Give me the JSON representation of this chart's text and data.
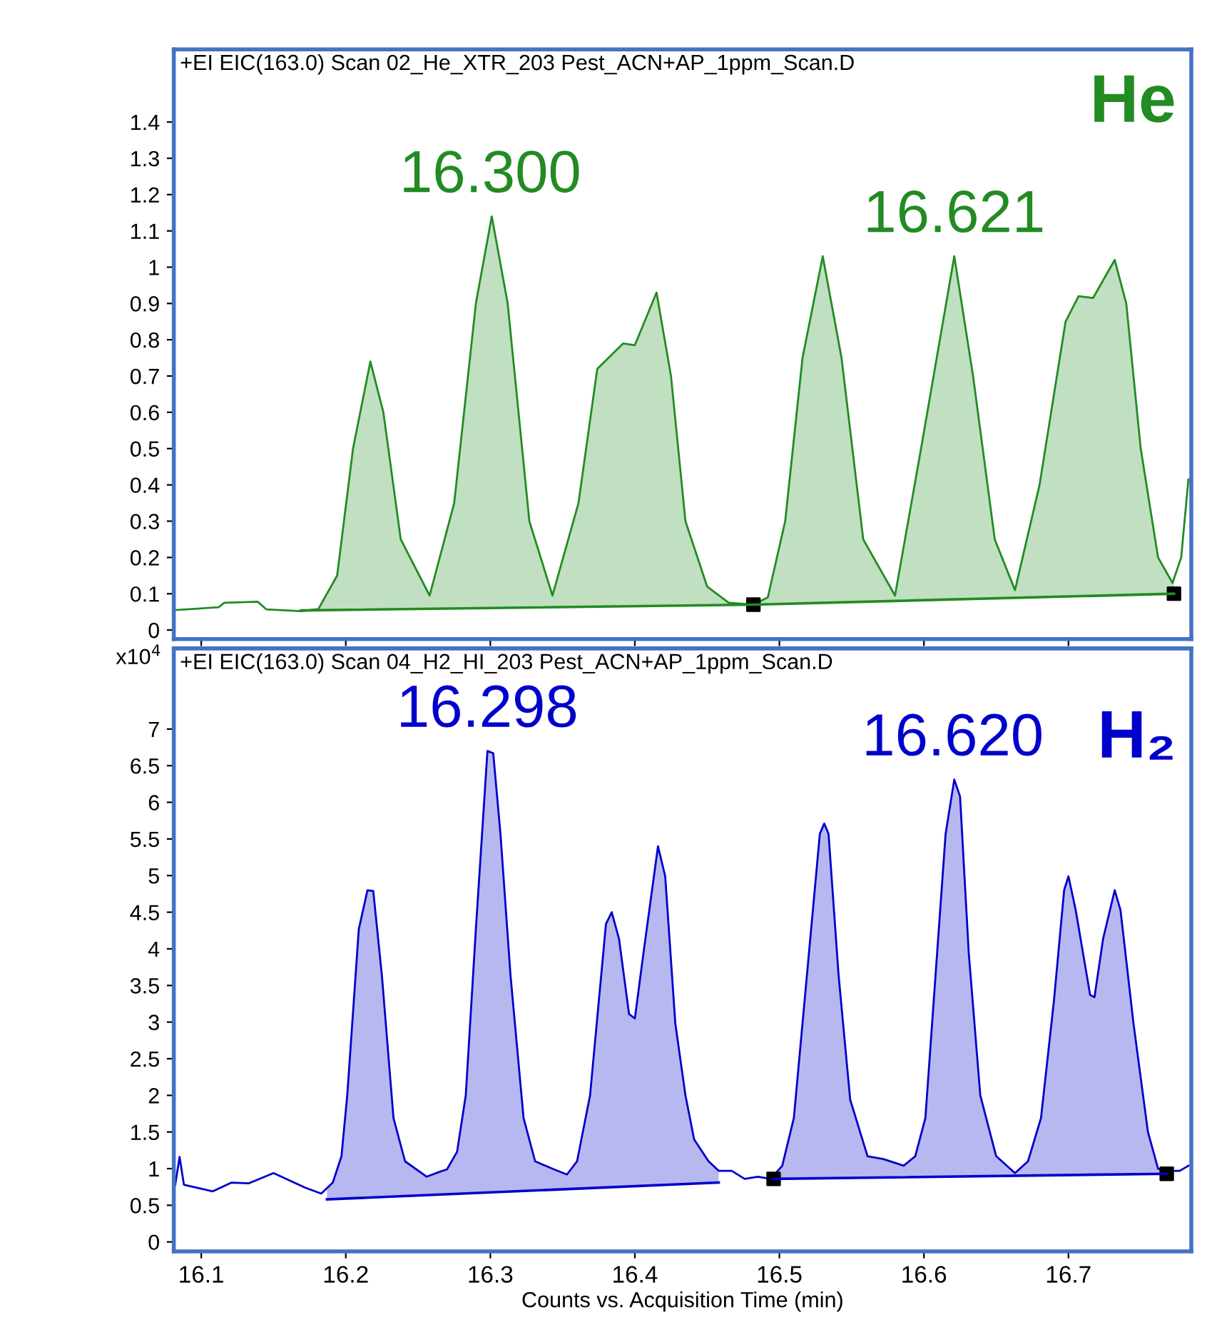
{
  "chart_data": [
    {
      "type": "line",
      "title": "+EI EIC(163.0) Scan 02_He_XTR_203 Pest_ACN+AP_1ppm_Scan.D",
      "xlim": [
        16.081,
        16.785
      ],
      "ylim": [
        -0.025,
        1.6
      ],
      "yticks": [
        0,
        0.1,
        0.2,
        0.3,
        0.4,
        0.5,
        0.6,
        0.7,
        0.8,
        0.9,
        1,
        1.1,
        1.2,
        1.3,
        1.4
      ],
      "xticks": [
        16.1,
        16.2,
        16.3,
        16.4,
        16.5,
        16.6,
        16.7
      ],
      "tick_labels": "y",
      "grid": false,
      "legend": false,
      "annotations": [
        {
          "text": "16.300",
          "x": 16.3,
          "y": 1.14
        },
        {
          "text": "16.621",
          "x": 16.621,
          "y": 1.03
        },
        "He"
      ],
      "series": [
        {
          "color": "#228b22",
          "x": [
            16.082,
            16.112,
            16.116,
            16.139,
            16.145,
            16.169,
            16.181,
            16.194,
            16.205,
            16.217,
            16.226,
            16.238,
            16.258,
            16.275,
            16.29,
            16.301,
            16.312,
            16.327,
            16.343,
            16.361,
            16.374,
            16.392,
            16.4,
            16.415,
            16.425,
            16.435,
            16.45,
            16.465,
            16.482,
            16.492,
            16.504,
            16.516,
            16.53,
            16.543,
            16.558,
            16.58,
            16.598,
            16.621,
            16.634,
            16.649,
            16.663,
            16.68,
            16.698,
            16.707,
            16.717,
            16.732,
            16.74,
            16.75,
            16.762,
            16.772,
            16.778,
            16.783
          ],
          "values": [
            0.055,
            0.063,
            0.075,
            0.078,
            0.057,
            0.052,
            0.058,
            0.15,
            0.5,
            0.74,
            0.6,
            0.25,
            0.095,
            0.35,
            0.9,
            1.14,
            0.9,
            0.3,
            0.095,
            0.35,
            0.72,
            0.79,
            0.785,
            0.93,
            0.7,
            0.3,
            0.12,
            0.075,
            0.07,
            0.09,
            0.3,
            0.75,
            1.03,
            0.75,
            0.25,
            0.095,
            0.5,
            1.03,
            0.7,
            0.25,
            0.11,
            0.4,
            0.85,
            0.92,
            0.915,
            1.02,
            0.9,
            0.5,
            0.2,
            0.13,
            0.2,
            0.415
          ]
        },
        {
          "type": "line",
          "color": "#228b22",
          "x": [
            16.169,
            16.482,
            16.773
          ],
          "values": [
            0.054,
            0.07,
            0.1
          ]
        },
        {
          "type": "scatter",
          "color": "#000000",
          "marker": "square",
          "x": [
            16.482,
            16.773
          ],
          "values": [
            0.07,
            0.1
          ]
        }
      ]
    },
    {
      "type": "line",
      "title": "+EI EIC(163.0) Scan 04_H2_HI_203 Pest_ACN+AP_1ppm_Scan.D",
      "xlabel": "Counts vs. Acquisition Time (min)",
      "ylabel": "x10$^{4}$",
      "xlim": [
        16.081,
        16.785
      ],
      "ylim": [
        -0.13,
        8.1
      ],
      "yticks": [
        0,
        0.5,
        1,
        1.5,
        2,
        2.5,
        3,
        3.5,
        4,
        4.5,
        5,
        5.5,
        6,
        6.5,
        7
      ],
      "xticks": [
        16.1,
        16.2,
        16.3,
        16.4,
        16.5,
        16.6,
        16.7
      ],
      "grid": false,
      "legend": false,
      "annotations": [
        {
          "text": "16.298",
          "x": 16.298,
          "y": 6.7
        },
        {
          "text": "16.620",
          "x": 16.62,
          "y": 6.31
        },
        "H₂"
      ],
      "series": [
        {
          "color": "#0000cc",
          "x": [
            16.082,
            16.085,
            16.088,
            16.108,
            16.121,
            16.133,
            16.15,
            16.172,
            16.183,
            16.191,
            16.197,
            16.201,
            16.209,
            16.215,
            16.219,
            16.225,
            16.233,
            16.241,
            16.256,
            16.264,
            16.27,
            16.277,
            16.283,
            16.29,
            16.298,
            16.302,
            16.307,
            16.314,
            16.323,
            16.331,
            16.344,
            16.353,
            16.36,
            16.369,
            16.38,
            16.384,
            16.389,
            16.396,
            16.4,
            16.406,
            16.416,
            16.421,
            16.428,
            16.435,
            16.441,
            16.451,
            16.458,
            16.467,
            16.476,
            16.485,
            16.494,
            16.502,
            16.51,
            16.519,
            16.528,
            16.531,
            16.534,
            16.541,
            16.549,
            16.561,
            16.572,
            16.586,
            16.594,
            16.601,
            16.608,
            16.615,
            16.621,
            16.625,
            16.631,
            16.639,
            16.65,
            16.663,
            16.672,
            16.681,
            16.69,
            16.697,
            16.7,
            16.705,
            16.715,
            16.718,
            16.724,
            16.732,
            16.736,
            16.745,
            16.755,
            16.762,
            16.771,
            16.777,
            16.783
          ],
          "values": [
            0.78,
            1.16,
            0.78,
            0.69,
            0.81,
            0.8,
            0.94,
            0.74,
            0.66,
            0.81,
            1.17,
            2.0,
            4.27,
            4.8,
            4.79,
            3.63,
            1.69,
            1.1,
            0.89,
            0.95,
            0.99,
            1.23,
            2.0,
            4.27,
            6.7,
            6.67,
            5.57,
            3.63,
            1.69,
            1.1,
            0.99,
            0.92,
            1.1,
            2.0,
            4.34,
            4.5,
            4.14,
            3.11,
            3.05,
            3.95,
            5.4,
            4.99,
            2.98,
            2.0,
            1.4,
            1.1,
            0.97,
            0.97,
            0.86,
            0.89,
            0.86,
            1.04,
            1.69,
            3.63,
            5.57,
            5.71,
            5.57,
            3.63,
            1.94,
            1.17,
            1.13,
            1.04,
            1.17,
            1.69,
            3.63,
            5.57,
            6.31,
            6.08,
            3.95,
            2.0,
            1.17,
            0.94,
            1.1,
            1.69,
            3.3,
            4.8,
            4.99,
            4.53,
            3.37,
            3.34,
            4.14,
            4.8,
            4.53,
            2.98,
            1.5,
            1.0,
            0.97,
            0.97,
            1.04
          ]
        },
        {
          "type": "line",
          "color": "#0000cc",
          "x": [
            16.187,
            16.458,
            16.477,
            16.496,
            16.768
          ],
          "values": [
            0.58,
            0.81,
            null,
            0.86,
            0.93
          ]
        },
        {
          "type": "scatter",
          "color": "#000000",
          "marker": "square",
          "x": [
            16.496,
            16.768
          ],
          "values": [
            0.86,
            0.93
          ]
        }
      ]
    }
  ]
}
